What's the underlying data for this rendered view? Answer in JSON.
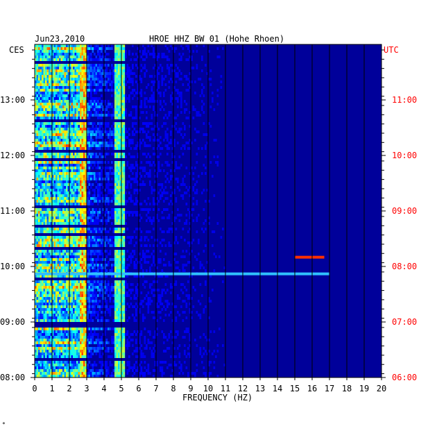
{
  "chart_data": {
    "type": "heatmap",
    "header_date": "Jun23,2010",
    "title": "HROE HHZ BW 01 (Hohe Rhoen)",
    "xlabel": "FREQUENCY (HZ)",
    "xlim": [
      0,
      20
    ],
    "x_ticks": [
      "0",
      "1",
      "2",
      "3",
      "4",
      "5",
      "6",
      "7",
      "8",
      "9",
      "10",
      "11",
      "12",
      "13",
      "14",
      "15",
      "16",
      "17",
      "18",
      "19",
      "20"
    ],
    "left_axis_label": "CES",
    "right_axis_label": "UTC",
    "left_ticks": [
      "13:00",
      "12:00",
      "11:00",
      "10:00",
      "09:00",
      "08:00"
    ],
    "right_ticks": [
      "11:00",
      "10:00",
      "09:00",
      "08:00",
      "07:00",
      "06:00"
    ],
    "time_range_ces": [
      "08:00",
      "13:50"
    ],
    "grid_x": true,
    "colormap": [
      "#00007f",
      "#0000ff",
      "#00ffff",
      "#ffff00",
      "#ff0000"
    ],
    "features": [
      {
        "x_range": [
          0,
          3
        ],
        "description_level": "high"
      },
      {
        "x": 2.8,
        "level": "very high"
      },
      {
        "x": 4.9,
        "level": "persistent line"
      },
      {
        "time_ces": "10:10",
        "x_range": [
          15,
          16.7
        ],
        "level": "red event"
      },
      {
        "time_ces": "09:52",
        "x_range": [
          0,
          17
        ],
        "level": "broadband event"
      }
    ]
  },
  "footer_mark": "*"
}
